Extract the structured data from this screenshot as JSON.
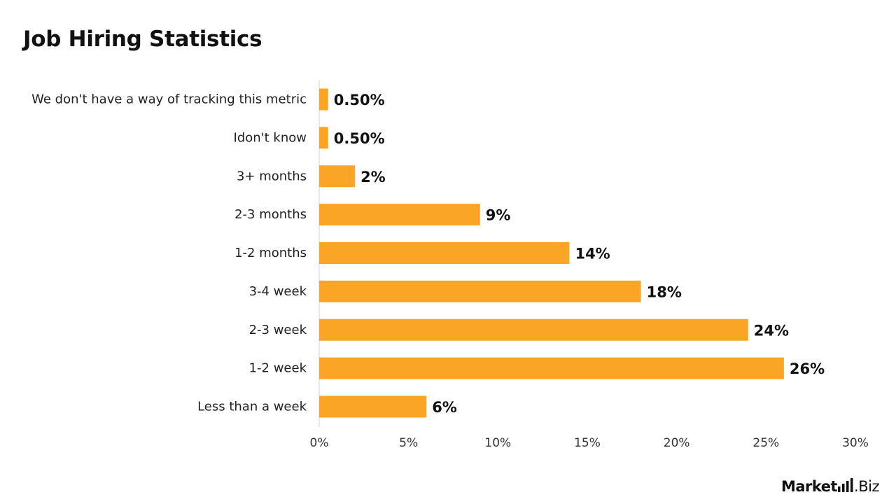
{
  "chart_data": {
    "type": "bar",
    "orientation": "horizontal",
    "title": "Job Hiring Statistics",
    "categories": [
      "We don't have a way of tracking this metric",
      "Idon't know",
      "3+ months",
      "2-3 months",
      "1-2 months",
      "3-4 week",
      "2-3 week",
      "1-2 week",
      "Less than a week"
    ],
    "values": [
      0.5,
      0.5,
      2,
      9,
      14,
      18,
      24,
      26,
      6
    ],
    "data_labels": [
      "0.50%",
      "0.50%",
      "2%",
      "9%",
      "14%",
      "18%",
      "24%",
      "26%",
      "6%"
    ],
    "xlim": [
      0,
      30
    ],
    "x_ticks": [
      0,
      5,
      10,
      15,
      20,
      25,
      30
    ],
    "x_tick_labels": [
      "0%",
      "5%",
      "10%",
      "15%",
      "20%",
      "25%",
      "30%"
    ],
    "bar_color": "#FBA526",
    "grid": false
  },
  "logo": {
    "text": "Market.Biz",
    "word": "Market",
    "suffix": ".Biz"
  }
}
